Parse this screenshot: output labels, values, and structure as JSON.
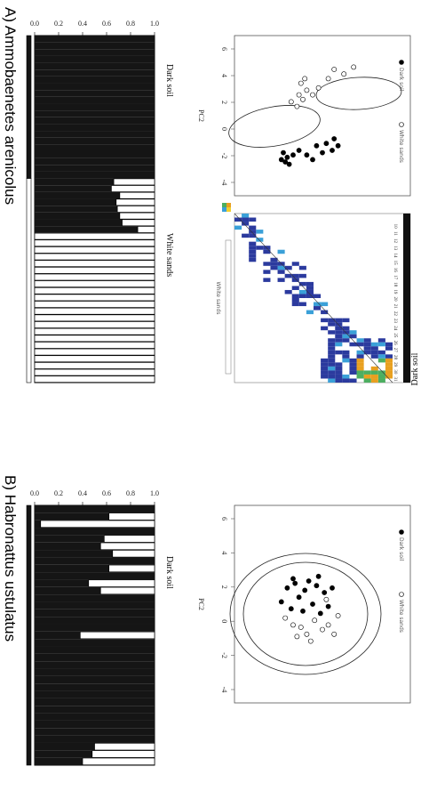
{
  "panels": {
    "A": {
      "title": "A) Ammobaenetes arenicolus"
    },
    "B": {
      "title": "B) Habronattus ustulatus"
    }
  },
  "groups": {
    "dark": "Dark soil",
    "white": "White sands"
  },
  "colors": {
    "dark": "#151515",
    "white": "#ffffff",
    "heat_low": "#2b3a9e",
    "heat_high": "#f0a020"
  },
  "chart_data": [
    {
      "id": "A-structure",
      "type": "bar",
      "ylim": [
        0,
        1
      ],
      "yticks": [
        "1.0",
        "0.8",
        "0.6",
        "0.4",
        "0.2",
        "0.0"
      ],
      "dark_fraction": [
        1,
        1,
        1,
        1,
        1,
        1,
        1,
        1,
        1,
        1,
        1,
        1,
        1,
        1,
        1,
        1,
        1,
        1,
        1,
        1,
        1,
        0.66,
        0.64,
        0.71,
        0.68,
        0.69,
        0.71,
        0.73,
        0.86,
        0,
        0,
        0,
        0,
        0,
        0,
        0,
        0,
        0,
        0,
        0,
        0,
        0,
        0,
        0,
        0,
        0,
        0,
        0,
        0,
        0,
        0
      ],
      "groups": [
        {
          "label": "Dark soil",
          "count": 21
        },
        {
          "label": "White sands",
          "count": 30
        }
      ]
    },
    {
      "id": "B-structure",
      "type": "bar",
      "ylim": [
        0,
        1
      ],
      "yticks": [
        "1.0",
        "0.8",
        "0.6",
        "0.4",
        "0.2",
        "0.0"
      ],
      "dark_fraction": [
        1,
        0.62,
        0.05,
        1,
        0.58,
        0.55,
        0.65,
        1,
        0.62,
        1,
        0.45,
        0.55,
        1,
        1,
        1,
        1,
        1,
        0.38,
        1,
        1,
        1,
        1,
        1,
        1,
        1,
        1,
        1,
        1,
        1,
        1,
        1,
        1,
        0.5,
        0.48,
        0.4
      ],
      "groups": [
        {
          "label": "Dark soil",
          "count": 35
        }
      ]
    },
    {
      "id": "A-pca",
      "type": "scatter",
      "ylabel": "PC2",
      "yticks": [
        "6",
        "4",
        "2",
        "0",
        "-2",
        "-4"
      ],
      "legend": [
        "Dark soil",
        "White sands"
      ],
      "series": [
        {
          "name": "Dark soil",
          "marker": "filled",
          "points": [
            [
              1.9,
              -2.0
            ],
            [
              2.1,
              -1.9
            ],
            [
              1.8,
              -1.8
            ],
            [
              2.0,
              -1.6
            ],
            [
              1.7,
              -2.1
            ],
            [
              1.2,
              -1.5
            ],
            [
              0.8,
              -1.7
            ],
            [
              0.3,
              -1.3
            ],
            [
              0.0,
              -1.6
            ],
            [
              -0.2,
              -1.2
            ],
            [
              -0.5,
              -1.5
            ],
            [
              -0.8,
              -1.3
            ],
            [
              0.5,
              -1.9
            ],
            [
              -0.6,
              -1.0
            ],
            [
              1.5,
              -1.7
            ]
          ]
        },
        {
          "name": "White sands",
          "marker": "open",
          "points": [
            [
              1.3,
              0.4
            ],
            [
              1.0,
              0.7
            ],
            [
              1.2,
              0.9
            ],
            [
              0.8,
              1.1
            ],
            [
              1.1,
              1.4
            ],
            [
              0.5,
              0.9
            ],
            [
              0.2,
              1.2
            ],
            [
              -0.3,
              1.6
            ],
            [
              -0.6,
              2.0
            ],
            [
              -1.1,
              1.8
            ],
            [
              -1.6,
              2.1
            ],
            [
              1.6,
              0.6
            ],
            [
              0.9,
              1.6
            ]
          ]
        }
      ]
    },
    {
      "id": "A-heatmap",
      "type": "heatmap",
      "row_labels": [
        "31",
        "30",
        "29",
        "28",
        "27",
        "26",
        "25",
        "24",
        "23",
        "22",
        "21",
        "20",
        "19",
        "18",
        "17",
        "16",
        "15",
        "14",
        "13",
        "12",
        "11",
        "10"
      ],
      "column_group": "White sands",
      "row_group": "Dark soil"
    },
    {
      "id": "B-pca",
      "type": "scatter",
      "ylabel": "PC2",
      "yticks": [
        "6",
        "4",
        "2",
        "0",
        "-2",
        "-4"
      ],
      "legend": [
        "Dark soil",
        "White sands"
      ],
      "series": [
        {
          "name": "Dark soil",
          "marker": "filled",
          "points": [
            [
              2.1,
              0.1
            ],
            [
              1.8,
              0.7
            ],
            [
              1.6,
              -0.2
            ],
            [
              1.4,
              0.9
            ],
            [
              1.2,
              0.3
            ],
            [
              1.0,
              -0.3
            ],
            [
              0.9,
              0.6
            ],
            [
              0.7,
              1.0
            ],
            [
              0.5,
              0.0
            ],
            [
              0.3,
              0.8
            ],
            [
              0.1,
              -0.4
            ],
            [
              -0.1,
              0.5
            ],
            [
              -0.3,
              -0.1
            ],
            [
              -0.5,
              0.7
            ],
            [
              0.2,
              1.2
            ],
            [
              1.5,
              1.1
            ]
          ]
        },
        {
          "name": "White sands",
          "marker": "open",
          "points": [
            [
              1.9,
              -0.6
            ],
            [
              1.5,
              -0.9
            ],
            [
              1.1,
              -1.0
            ],
            [
              0.8,
              -1.3
            ],
            [
              0.4,
              -0.7
            ],
            [
              0.0,
              -1.1
            ],
            [
              -0.3,
              -0.9
            ],
            [
              -0.6,
              -1.3
            ],
            [
              -0.8,
              -0.5
            ],
            [
              0.6,
              -1.6
            ],
            [
              1.3,
              -1.4
            ],
            [
              -0.2,
              0.2
            ]
          ]
        }
      ]
    }
  ]
}
